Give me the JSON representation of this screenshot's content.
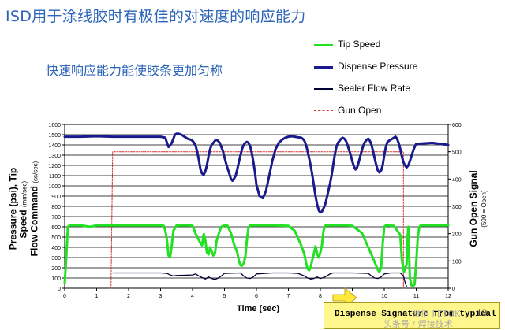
{
  "slide": {
    "title": "ISD用于涂线胶时有极佳的对速度的响应能力",
    "subtitle": "快速响应能力能使胶条更加匀称",
    "page_number": "18",
    "callout": "Dispense Signature from typical",
    "watermark_chat": "微信 FETOK",
    "watermark_id": "头条号 / 焊接技术"
  },
  "colors": {
    "tip_speed": "#22e022",
    "dispense_pressure": "#1a1a8c",
    "sealer_flow": "#000033",
    "gun_open": "#d03030",
    "title": "#2b64b8",
    "callout_bg": "#fff68c"
  },
  "chart_data": {
    "type": "line",
    "xlabel": "Time (sec)",
    "ylabel_left_1": "Pressure (psi), Tip",
    "ylabel_left_2_main": "Speed",
    "ylabel_left_2_unit": "(mm/sec),",
    "ylabel_left_3_main": "Flow Command",
    "ylabel_left_3_unit": "(cc/sec)",
    "ylabel_right_main": "Gun Open Signal",
    "ylabel_right_unit": "(500 = Open)",
    "xlim": [
      0,
      12
    ],
    "ylim_left": [
      0,
      1600
    ],
    "ylim_right": [
      0,
      600
    ],
    "x_ticks": [
      "0",
      "1",
      "2",
      "3",
      "4",
      "5",
      "6",
      "7",
      "8",
      "9",
      "10",
      "11",
      "12"
    ],
    "y_ticks_left": [
      "0",
      "100",
      "200",
      "300",
      "400",
      "500",
      "600",
      "700",
      "800",
      "900",
      "1000",
      "1100",
      "1200",
      "1300",
      "1400",
      "1500",
      "1600"
    ],
    "y_ticks_right": [
      "0",
      "100",
      "200",
      "300",
      "400",
      "500",
      "600"
    ],
    "legend": [
      "Tip Speed",
      "Dispense Pressure",
      "Sealer Flow Rate",
      "Gun Open"
    ],
    "series": [
      {
        "name": "Tip Speed",
        "axis": "left",
        "x": [
          0,
          0.05,
          0.1,
          0.15,
          0.2,
          0.5,
          0.8,
          1.0,
          1.5,
          2.0,
          2.5,
          3.0,
          3.1,
          3.15,
          3.2,
          3.25,
          3.3,
          3.35,
          3.4,
          3.5,
          3.7,
          3.9,
          4.0,
          4.1,
          4.25,
          4.3,
          4.35,
          4.4,
          4.45,
          4.5,
          4.55,
          4.6,
          4.65,
          4.7,
          4.75,
          4.85,
          4.9,
          5.0,
          5.1,
          5.2,
          5.3,
          5.4,
          5.45,
          5.5,
          5.55,
          5.6,
          5.65,
          5.7,
          5.75,
          5.8,
          5.9,
          6.0,
          6.5,
          7.0,
          7.2,
          7.4,
          7.5,
          7.55,
          7.6,
          7.65,
          7.7,
          7.75,
          7.8,
          7.85,
          7.9,
          7.95,
          8.0,
          8.05,
          8.1,
          8.15,
          8.2,
          8.3,
          8.4,
          8.6,
          8.8,
          9.0,
          9.3,
          9.6,
          9.8,
          9.85,
          9.9,
          9.95,
          10.0,
          10.05,
          10.1,
          10.3,
          10.5,
          10.55,
          10.6,
          10.62,
          10.65,
          10.7,
          10.72,
          10.75,
          10.8,
          10.85,
          10.9,
          10.95,
          11.0,
          11.05,
          11.1,
          11.15,
          11.2,
          11.5,
          12.0
        ],
        "values": [
          50,
          300,
          600,
          615,
          615,
          615,
          600,
          615,
          615,
          615,
          615,
          615,
          610,
          560,
          470,
          320,
          305,
          420,
          560,
          615,
          615,
          615,
          610,
          530,
          440,
          420,
          530,
          470,
          350,
          330,
          400,
          360,
          320,
          340,
          460,
          560,
          600,
          615,
          610,
          540,
          430,
          350,
          270,
          225,
          220,
          245,
          300,
          470,
          590,
          615,
          615,
          615,
          615,
          610,
          560,
          420,
          330,
          250,
          190,
          175,
          210,
          280,
          340,
          410,
          340,
          300,
          350,
          420,
          560,
          610,
          615,
          615,
          615,
          615,
          615,
          610,
          540,
          330,
          180,
          160,
          200,
          430,
          600,
          615,
          615,
          610,
          520,
          280,
          180,
          160,
          200,
          230,
          450,
          600,
          100,
          30,
          20,
          40,
          250,
          500,
          600,
          615,
          615,
          615,
          615
        ]
      },
      {
        "name": "Dispense Pressure",
        "axis": "left",
        "x": [
          0,
          0.5,
          1.0,
          1.5,
          2.0,
          2.5,
          3.0,
          3.15,
          3.2,
          3.25,
          3.3,
          3.35,
          3.4,
          3.45,
          3.5,
          3.55,
          3.6,
          3.65,
          3.7,
          3.75,
          3.8,
          3.85,
          3.9,
          3.95,
          4.0,
          4.05,
          4.1,
          4.15,
          4.2,
          4.25,
          4.3,
          4.35,
          4.4,
          4.45,
          4.5,
          4.55,
          4.6,
          4.65,
          4.7,
          4.75,
          4.8,
          4.85,
          4.9,
          4.95,
          5.0,
          5.05,
          5.1,
          5.15,
          5.2,
          5.25,
          5.3,
          5.35,
          5.4,
          5.45,
          5.5,
          5.55,
          5.6,
          5.65,
          5.7,
          5.75,
          5.8,
          5.85,
          5.9,
          5.95,
          6.0,
          6.1,
          6.2,
          6.3,
          6.4,
          6.5,
          6.6,
          6.7,
          6.8,
          6.9,
          7.0,
          7.1,
          7.2,
          7.3,
          7.4,
          7.45,
          7.5,
          7.55,
          7.6,
          7.65,
          7.7,
          7.75,
          7.8,
          7.85,
          7.9,
          7.95,
          8.0,
          8.05,
          8.1,
          8.15,
          8.2,
          8.25,
          8.3,
          8.35,
          8.4,
          8.45,
          8.5,
          8.55,
          8.6,
          8.65,
          8.7,
          8.75,
          8.8,
          8.85,
          8.9,
          8.95,
          9.0,
          9.05,
          9.1,
          9.15,
          9.2,
          9.25,
          9.3,
          9.35,
          9.4,
          9.45,
          9.5,
          9.55,
          9.6,
          9.65,
          9.7,
          9.75,
          9.8,
          9.85,
          9.9,
          9.95,
          10.0,
          10.05,
          10.1,
          10.15,
          10.2,
          10.25,
          10.3,
          10.35,
          10.4,
          10.45,
          10.5,
          10.55,
          10.6,
          10.65,
          10.7,
          10.75,
          10.8,
          10.85,
          10.9,
          10.95,
          11.0,
          11.5,
          12.0
        ],
        "values": [
          1480,
          1480,
          1485,
          1480,
          1480,
          1480,
          1480,
          1470,
          1420,
          1380,
          1395,
          1420,
          1460,
          1500,
          1510,
          1510,
          1505,
          1500,
          1490,
          1480,
          1470,
          1460,
          1455,
          1450,
          1440,
          1420,
          1390,
          1330,
          1250,
          1160,
          1120,
          1110,
          1140,
          1200,
          1290,
          1360,
          1400,
          1420,
          1440,
          1450,
          1440,
          1420,
          1380,
          1340,
          1280,
          1220,
          1170,
          1120,
          1070,
          1050,
          1070,
          1100,
          1160,
          1230,
          1300,
          1360,
          1400,
          1420,
          1430,
          1420,
          1390,
          1330,
          1240,
          1140,
          1010,
          900,
          880,
          950,
          1100,
          1250,
          1360,
          1420,
          1450,
          1470,
          1480,
          1485,
          1480,
          1475,
          1470,
          1460,
          1440,
          1400,
          1340,
          1270,
          1190,
          1100,
          1000,
          900,
          820,
          760,
          740,
          750,
          780,
          820,
          880,
          950,
          1020,
          1100,
          1200,
          1300,
          1380,
          1420,
          1440,
          1460,
          1470,
          1460,
          1440,
          1400,
          1350,
          1300,
          1240,
          1190,
          1160,
          1180,
          1230,
          1290,
          1350,
          1400,
          1430,
          1450,
          1460,
          1440,
          1400,
          1340,
          1270,
          1200,
          1150,
          1130,
          1150,
          1200,
          1300,
          1380,
          1430,
          1440,
          1450,
          1460,
          1470,
          1480,
          1460,
          1420,
          1360,
          1290,
          1230,
          1200,
          1180,
          1200,
          1240,
          1290,
          1340,
          1380,
          1410,
          1420,
          1400
        ]
      },
      {
        "name": "Sealer Flow Rate",
        "axis": "left",
        "x": [
          1.5,
          2.0,
          2.5,
          3.0,
          3.2,
          3.3,
          3.4,
          3.5,
          4.0,
          4.1,
          4.2,
          4.3,
          4.4,
          4.5,
          4.6,
          4.7,
          4.8,
          4.9,
          5.0,
          5.5,
          5.6,
          5.7,
          5.8,
          5.9,
          6.0,
          6.5,
          7.0,
          7.3,
          7.5,
          7.6,
          7.7,
          7.8,
          7.9,
          8.0,
          8.1,
          8.2,
          8.3,
          8.4,
          8.5,
          9.0,
          9.5,
          9.6,
          9.7,
          9.8,
          9.9,
          10.0,
          10.2,
          10.5,
          10.6,
          10.65,
          10.7
        ],
        "values": [
          150,
          150,
          150,
          150,
          145,
          130,
          120,
          125,
          130,
          140,
          120,
          105,
          90,
          110,
          95,
          85,
          100,
          120,
          145,
          150,
          120,
          100,
          95,
          110,
          140,
          150,
          150,
          145,
          120,
          100,
          90,
          95,
          110,
          95,
          105,
          120,
          140,
          150,
          150,
          150,
          145,
          120,
          100,
          95,
          110,
          140,
          150,
          150,
          120,
          60,
          15
        ]
      },
      {
        "name": "Gun Open",
        "axis": "right",
        "x": [
          1.45,
          1.5,
          10.6,
          10.6
        ],
        "values": [
          0,
          500,
          500,
          0
        ]
      }
    ]
  }
}
